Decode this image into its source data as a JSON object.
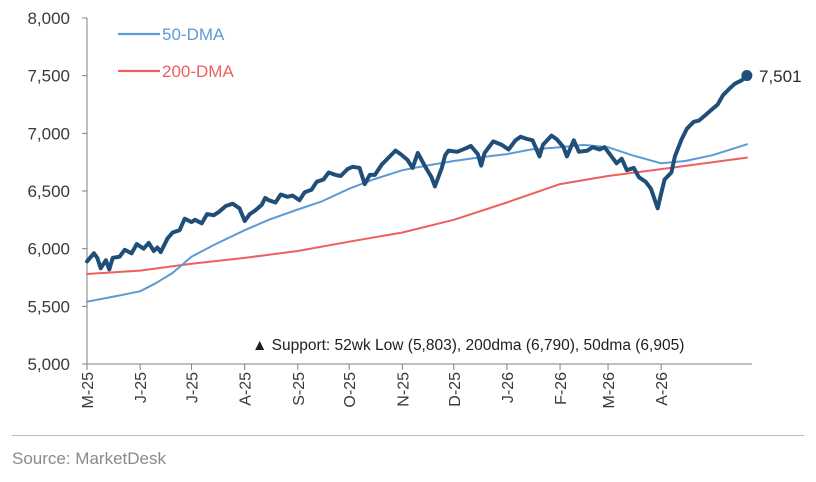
{
  "chart_data": {
    "type": "line",
    "title": "",
    "xlabel": "",
    "ylabel": "",
    "ylim": [
      5000,
      8000
    ],
    "yticks": [
      5000,
      5500,
      6000,
      6500,
      7000,
      7500,
      8000
    ],
    "ytick_labels": [
      "5,000",
      "5,500",
      "6,000",
      "6,500",
      "7,000",
      "7,500",
      "8,000"
    ],
    "xlim": [
      "2025-05-01",
      "2026-05-24"
    ],
    "xticks": [
      {
        "label": "M-25",
        "date": "2025-05-01"
      },
      {
        "label": "J-25",
        "date": "2025-06-01"
      },
      {
        "label": "J-25",
        "date": "2025-07-01"
      },
      {
        "label": "A-25",
        "date": "2025-08-01"
      },
      {
        "label": "S-25",
        "date": "2025-09-01"
      },
      {
        "label": "O-25",
        "date": "2025-10-01"
      },
      {
        "label": "N-25",
        "date": "2025-11-01"
      },
      {
        "label": "D-25",
        "date": "2025-12-01"
      },
      {
        "label": "J-26",
        "date": "2026-01-01"
      },
      {
        "label": "F-26",
        "date": "2026-02-01"
      },
      {
        "label": "M-26",
        "date": "2026-03-01"
      },
      {
        "label": "A-26",
        "date": "2026-04-01"
      }
    ],
    "grid": false,
    "legend_position": "top-left",
    "series": [
      {
        "name": "",
        "color": "#1f4e79",
        "values": [
          [
            "2025-05-01",
            5890
          ],
          [
            "2025-05-05",
            5960
          ],
          [
            "2025-05-07",
            5920
          ],
          [
            "2025-05-09",
            5830
          ],
          [
            "2025-05-12",
            5900
          ],
          [
            "2025-05-14",
            5820
          ],
          [
            "2025-05-16",
            5920
          ],
          [
            "2025-05-20",
            5930
          ],
          [
            "2025-05-23",
            5990
          ],
          [
            "2025-05-27",
            5960
          ],
          [
            "2025-05-30",
            6040
          ],
          [
            "2025-06-03",
            6000
          ],
          [
            "2025-06-06",
            6050
          ],
          [
            "2025-06-09",
            5980
          ],
          [
            "2025-06-11",
            6010
          ],
          [
            "2025-06-13",
            5970
          ],
          [
            "2025-06-17",
            6090
          ],
          [
            "2025-06-20",
            6140
          ],
          [
            "2025-06-24",
            6160
          ],
          [
            "2025-06-27",
            6260
          ],
          [
            "2025-07-01",
            6230
          ],
          [
            "2025-07-03",
            6250
          ],
          [
            "2025-07-07",
            6220
          ],
          [
            "2025-07-10",
            6300
          ],
          [
            "2025-07-14",
            6290
          ],
          [
            "2025-07-17",
            6320
          ],
          [
            "2025-07-21",
            6370
          ],
          [
            "2025-07-25",
            6390
          ],
          [
            "2025-07-29",
            6350
          ],
          [
            "2025-08-01",
            6240
          ],
          [
            "2025-08-04",
            6300
          ],
          [
            "2025-08-07",
            6330
          ],
          [
            "2025-08-11",
            6380
          ],
          [
            "2025-08-13",
            6440
          ],
          [
            "2025-08-15",
            6420
          ],
          [
            "2025-08-19",
            6400
          ],
          [
            "2025-08-22",
            6470
          ],
          [
            "2025-08-26",
            6450
          ],
          [
            "2025-08-29",
            6460
          ],
          [
            "2025-09-02",
            6420
          ],
          [
            "2025-09-05",
            6490
          ],
          [
            "2025-09-09",
            6510
          ],
          [
            "2025-09-12",
            6580
          ],
          [
            "2025-09-16",
            6600
          ],
          [
            "2025-09-19",
            6660
          ],
          [
            "2025-09-23",
            6640
          ],
          [
            "2025-09-26",
            6630
          ],
          [
            "2025-09-30",
            6690
          ],
          [
            "2025-10-03",
            6710
          ],
          [
            "2025-10-07",
            6700
          ],
          [
            "2025-10-10",
            6560
          ],
          [
            "2025-10-13",
            6640
          ],
          [
            "2025-10-16",
            6640
          ],
          [
            "2025-10-20",
            6730
          ],
          [
            "2025-10-24",
            6790
          ],
          [
            "2025-10-28",
            6850
          ],
          [
            "2025-10-31",
            6820
          ],
          [
            "2025-11-04",
            6770
          ],
          [
            "2025-11-07",
            6700
          ],
          [
            "2025-11-10",
            6830
          ],
          [
            "2025-11-14",
            6720
          ],
          [
            "2025-11-18",
            6620
          ],
          [
            "2025-11-20",
            6540
          ],
          [
            "2025-11-24",
            6700
          ],
          [
            "2025-11-26",
            6810
          ],
          [
            "2025-11-28",
            6850
          ],
          [
            "2025-12-03",
            6840
          ],
          [
            "2025-12-08",
            6870
          ],
          [
            "2025-12-11",
            6890
          ],
          [
            "2025-12-15",
            6820
          ],
          [
            "2025-12-17",
            6720
          ],
          [
            "2025-12-19",
            6830
          ],
          [
            "2025-12-24",
            6930
          ],
          [
            "2025-12-29",
            6900
          ],
          [
            "2026-01-02",
            6860
          ],
          [
            "2026-01-06",
            6940
          ],
          [
            "2026-01-09",
            6970
          ],
          [
            "2026-01-13",
            6950
          ],
          [
            "2026-01-16",
            6940
          ],
          [
            "2026-01-20",
            6800
          ],
          [
            "2026-01-22",
            6900
          ],
          [
            "2026-01-27",
            6980
          ],
          [
            "2026-01-30",
            6950
          ],
          [
            "2026-02-03",
            6880
          ],
          [
            "2026-02-05",
            6800
          ],
          [
            "2026-02-09",
            6940
          ],
          [
            "2026-02-12",
            6840
          ],
          [
            "2026-02-17",
            6850
          ],
          [
            "2026-02-20",
            6880
          ],
          [
            "2026-02-24",
            6860
          ],
          [
            "2026-02-27",
            6880
          ],
          [
            "2026-03-03",
            6800
          ],
          [
            "2026-03-06",
            6740
          ],
          [
            "2026-03-09",
            6780
          ],
          [
            "2026-03-12",
            6680
          ],
          [
            "2026-03-16",
            6700
          ],
          [
            "2026-03-19",
            6620
          ],
          [
            "2026-03-23",
            6580
          ],
          [
            "2026-03-26",
            6520
          ],
          [
            "2026-03-30",
            6350
          ],
          [
            "2026-04-01",
            6480
          ],
          [
            "2026-04-03",
            6600
          ],
          [
            "2026-04-07",
            6660
          ],
          [
            "2026-04-09",
            6800
          ],
          [
            "2026-04-13",
            6950
          ],
          [
            "2026-04-16",
            7040
          ],
          [
            "2026-04-20",
            7100
          ],
          [
            "2026-04-23",
            7110
          ],
          [
            "2026-04-27",
            7160
          ],
          [
            "2026-04-30",
            7200
          ],
          [
            "2026-05-04",
            7250
          ],
          [
            "2026-05-07",
            7330
          ],
          [
            "2026-05-11",
            7390
          ],
          [
            "2026-05-14",
            7430
          ],
          [
            "2026-05-18",
            7460
          ],
          [
            "2026-05-21",
            7501
          ]
        ]
      },
      {
        "name": "50-DMA",
        "color": "#5b9bd5",
        "values": [
          [
            "2025-05-01",
            5540
          ],
          [
            "2025-05-15",
            5580
          ],
          [
            "2025-06-01",
            5630
          ],
          [
            "2025-06-10",
            5700
          ],
          [
            "2025-06-20",
            5790
          ],
          [
            "2025-07-01",
            5930
          ],
          [
            "2025-07-15",
            6040
          ],
          [
            "2025-08-01",
            6160
          ],
          [
            "2025-08-15",
            6250
          ],
          [
            "2025-09-01",
            6340
          ],
          [
            "2025-09-15",
            6410
          ],
          [
            "2025-10-01",
            6520
          ],
          [
            "2025-10-15",
            6600
          ],
          [
            "2025-11-01",
            6680
          ],
          [
            "2025-11-15",
            6720
          ],
          [
            "2025-12-01",
            6760
          ],
          [
            "2025-12-15",
            6790
          ],
          [
            "2026-01-01",
            6820
          ],
          [
            "2026-01-15",
            6860
          ],
          [
            "2026-02-01",
            6880
          ],
          [
            "2026-02-15",
            6900
          ],
          [
            "2026-03-01",
            6880
          ],
          [
            "2026-03-15",
            6810
          ],
          [
            "2026-04-01",
            6740
          ],
          [
            "2026-04-15",
            6760
          ],
          [
            "2026-05-01",
            6810
          ],
          [
            "2026-05-21",
            6905
          ]
        ]
      },
      {
        "name": "200-DMA",
        "color": "#ef5f5f",
        "values": [
          [
            "2025-05-01",
            5780
          ],
          [
            "2025-06-01",
            5810
          ],
          [
            "2025-07-01",
            5870
          ],
          [
            "2025-08-01",
            5920
          ],
          [
            "2025-09-01",
            5980
          ],
          [
            "2025-10-01",
            6060
          ],
          [
            "2025-11-01",
            6140
          ],
          [
            "2025-12-01",
            6250
          ],
          [
            "2026-01-01",
            6400
          ],
          [
            "2026-02-01",
            6560
          ],
          [
            "2026-03-01",
            6630
          ],
          [
            "2026-04-01",
            6690
          ],
          [
            "2026-05-21",
            6790
          ]
        ]
      }
    ],
    "end_label": "7,501",
    "annotation": "▲ Support:  52wk Low (5,803), 200dma (6,790), 50dma (6,905)"
  },
  "source": "Source: MarketDesk"
}
